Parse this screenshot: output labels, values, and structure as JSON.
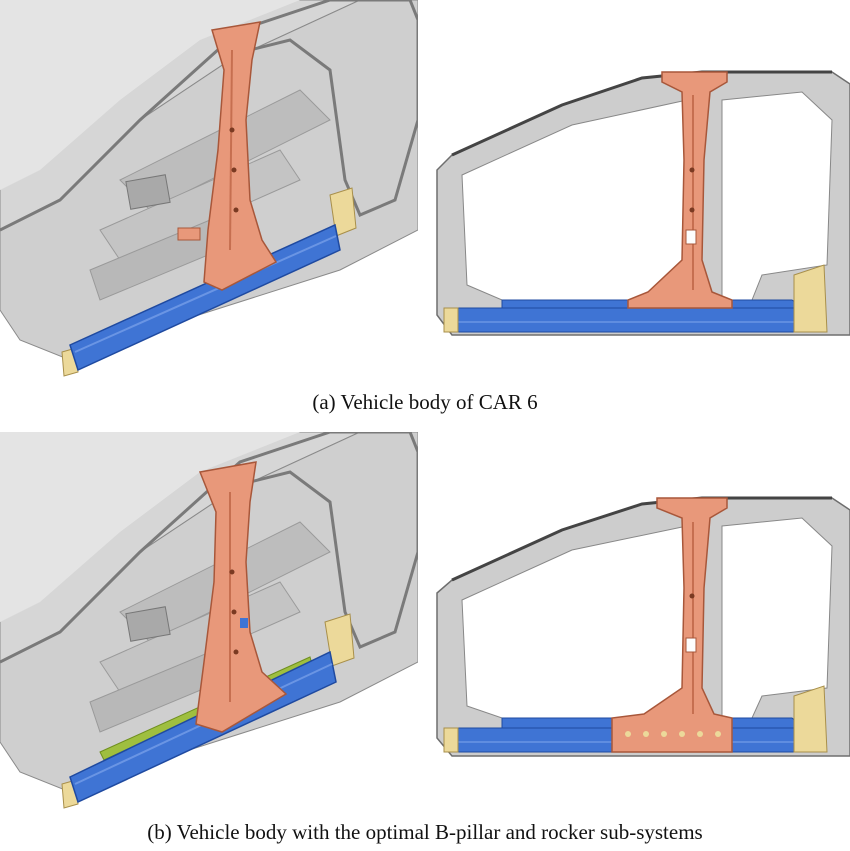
{
  "figure": {
    "row_a": {
      "caption": "(a) Vehicle body of CAR 6"
    },
    "row_b": {
      "caption": "(b) Vehicle body with the optimal B-pillar and rocker sub-systems"
    }
  },
  "colors": {
    "b_pillar": "#e8987a",
    "rocker": "#3f74d4",
    "end_caps": "#ecd99a",
    "body_shell": "#c9c9c9",
    "reinforcement_green": "#9fbf3f"
  }
}
